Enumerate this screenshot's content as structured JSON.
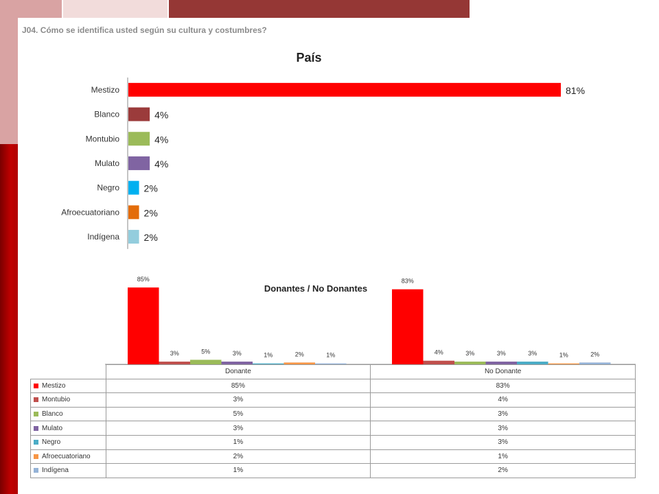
{
  "question": "J04. Cómo se identifica usted según su cultura y costumbres?",
  "chart_data": [
    {
      "type": "bar",
      "orientation": "horizontal",
      "title": "País",
      "categories": [
        "Mestizo",
        "Blanco",
        "Montubio",
        "Mulato",
        "Negro",
        "Afroecuatoriano",
        "Indígena"
      ],
      "values": [
        81,
        4,
        4,
        4,
        2,
        2,
        2
      ],
      "value_labels": [
        "81%",
        "4%",
        "4%",
        "4%",
        "2%",
        "2%",
        "2%"
      ],
      "colors": [
        "#ff0000",
        "#9b3b3b",
        "#9bbb59",
        "#8064a2",
        "#00b0f0",
        "#e36c0a",
        "#93cddd"
      ],
      "xlim": [
        0,
        100
      ],
      "grid": false
    },
    {
      "type": "bar",
      "title": "Donantes / No Donantes",
      "categories": [
        "Donante",
        "No Donante"
      ],
      "series": [
        {
          "name": "Mestizo",
          "values": [
            85,
            83
          ],
          "labels": [
            "85%",
            "83%"
          ],
          "color": "#ff0000"
        },
        {
          "name": "Montubio",
          "values": [
            3,
            4
          ],
          "labels": [
            "3%",
            "4%"
          ],
          "color": "#c0504d"
        },
        {
          "name": "Blanco",
          "values": [
            5,
            3
          ],
          "labels": [
            "5%",
            "3%"
          ],
          "color": "#9bbb59"
        },
        {
          "name": "Mulato",
          "values": [
            3,
            3
          ],
          "labels": [
            "3%",
            "3%"
          ],
          "color": "#8064a2"
        },
        {
          "name": "Negro",
          "values": [
            1,
            3
          ],
          "labels": [
            "1%",
            "3%"
          ],
          "color": "#4bacc6"
        },
        {
          "name": "Afroecuatoriano",
          "values": [
            2,
            1
          ],
          "labels": [
            "2%",
            "1%"
          ],
          "color": "#f79646"
        },
        {
          "name": "Indígena",
          "values": [
            1,
            2
          ],
          "labels": [
            "1%",
            "2%"
          ],
          "color": "#95b3d7"
        }
      ],
      "legend": "data-table-below",
      "grid": false
    }
  ]
}
